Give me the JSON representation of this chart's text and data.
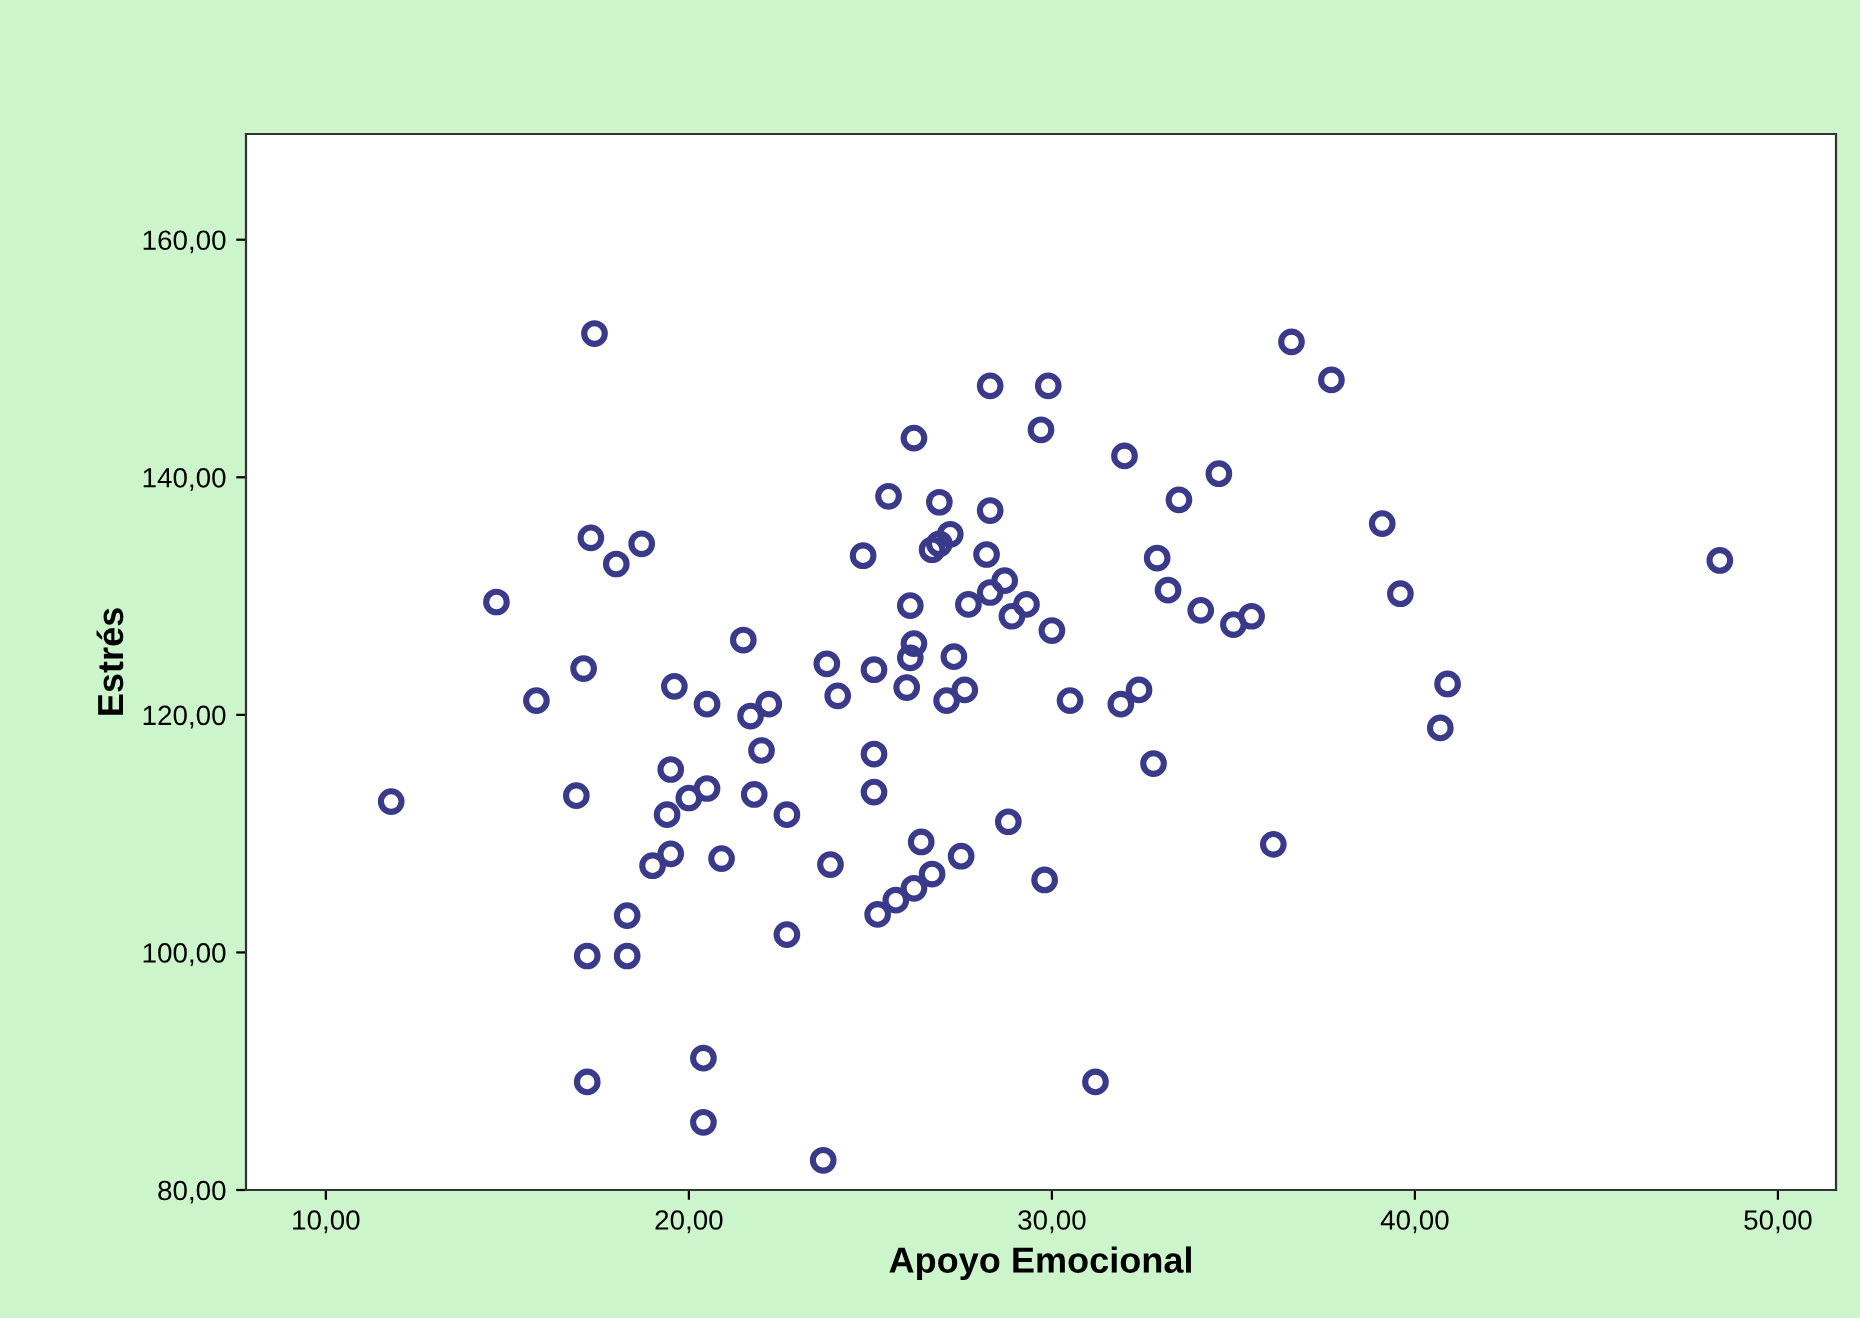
{
  "chart_data": {
    "type": "scatter",
    "xlabel": "Apoyo Emocional",
    "ylabel": "Estrés",
    "marker": "circle",
    "grid": false,
    "legend": false,
    "xlim": [
      7.8,
      51.6
    ],
    "ylim": [
      80,
      168.9
    ],
    "xticks": [
      {
        "value": 10,
        "label": "10,00"
      },
      {
        "value": 20,
        "label": "20,00"
      },
      {
        "value": 30,
        "label": "30,00"
      },
      {
        "value": 40,
        "label": "40,00"
      },
      {
        "value": 50,
        "label": "50,00"
      }
    ],
    "yticks": [
      {
        "value": 80,
        "label": "80,00"
      },
      {
        "value": 100,
        "label": "100,00"
      },
      {
        "value": 120,
        "label": "120,00"
      },
      {
        "value": 140,
        "label": "140,00"
      },
      {
        "value": 160,
        "label": "160,00"
      }
    ],
    "series": [
      {
        "color": "#3a3a8a",
        "x": [
          11.8,
          14.7,
          15.8,
          17.4,
          17.3,
          18.0,
          18.7,
          17.1,
          16.9,
          17.2,
          18.3,
          18.3,
          17.2,
          20.4,
          20.4,
          23.7,
          19.6,
          20.5,
          21.5,
          21.7,
          22.2,
          22.0,
          19.5,
          20.5,
          20.0,
          19.4,
          21.8,
          22.7,
          19.5,
          19.0,
          20.9,
          22.7,
          23.9,
          23.8,
          24.1,
          24.8,
          25.5,
          26.2,
          25.1,
          25.1,
          25.1,
          26.1,
          26.1,
          26.2,
          26.0,
          26.9,
          26.9,
          27.2,
          26.7,
          28.3,
          29.9,
          29.7,
          28.3,
          27.3,
          27.6,
          27.1,
          27.7,
          28.2,
          28.3,
          28.7,
          29.3,
          28.9,
          30.0,
          30.5,
          26.4,
          27.5,
          28.8,
          29.8,
          26.7,
          26.2,
          25.7,
          25.2,
          31.2,
          32.0,
          33.5,
          34.6,
          32.9,
          33.2,
          34.1,
          35.0,
          35.5,
          32.4,
          31.9,
          32.8,
          36.1,
          36.6,
          37.7,
          39.1,
          39.6,
          40.9,
          40.7,
          48.4
        ],
        "values": [
          112.7,
          129.5,
          121.2,
          152.1,
          134.9,
          132.7,
          134.4,
          123.9,
          113.2,
          99.7,
          99.7,
          103.1,
          89.1,
          91.1,
          85.7,
          82.5,
          122.4,
          120.9,
          126.3,
          119.9,
          120.9,
          117.0,
          115.4,
          113.8,
          113.0,
          111.6,
          113.3,
          111.6,
          108.3,
          107.3,
          107.9,
          101.5,
          107.4,
          124.3,
          121.6,
          133.4,
          138.4,
          143.3,
          123.8,
          116.7,
          113.5,
          124.8,
          129.2,
          126.0,
          122.3,
          137.9,
          134.4,
          135.2,
          133.9,
          147.7,
          147.7,
          144.0,
          137.2,
          124.9,
          122.1,
          121.2,
          129.3,
          133.5,
          130.3,
          131.3,
          129.3,
          128.3,
          127.1,
          121.2,
          109.3,
          108.1,
          111.0,
          106.1,
          106.6,
          105.4,
          104.4,
          103.2,
          89.1,
          141.8,
          138.1,
          140.3,
          133.2,
          130.5,
          128.8,
          127.6,
          128.3,
          122.1,
          120.9,
          115.9,
          109.1,
          151.4,
          148.2,
          136.1,
          130.2,
          122.6,
          118.9,
          133.0
        ]
      }
    ]
  }
}
